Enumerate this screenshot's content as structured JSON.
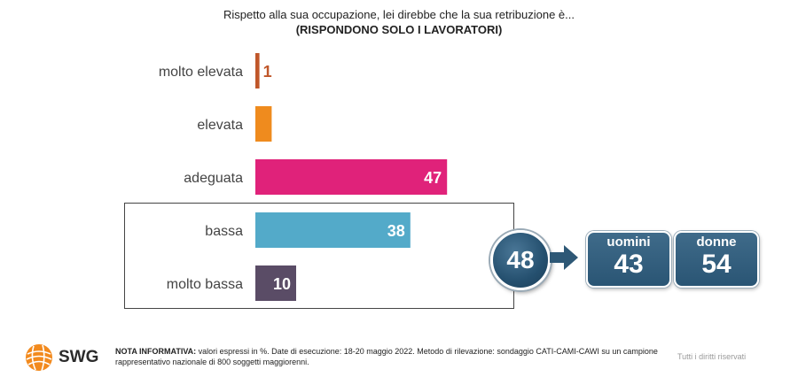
{
  "title": {
    "line1": "Rispetto alla sua occupazione, lei direbbe che la sua retribuzione è...",
    "line2": "(RISPONDONO SOLO I LAVORATORI)"
  },
  "chart_data": {
    "type": "bar",
    "orientation": "horizontal",
    "categories": [
      "molto elevata",
      "elevata",
      "adeguata",
      "bassa",
      "molto bassa"
    ],
    "values": [
      1,
      4,
      47,
      38,
      10
    ],
    "colors": [
      "#c0572a",
      "#ef8b1e",
      "#e0227a",
      "#53aac9",
      "#5a4c66"
    ],
    "value_label_colors": [
      "#c0572a",
      "#ffffff",
      "#ffffff",
      "#ffffff",
      "#ffffff"
    ],
    "unit": "%",
    "xlim": [
      0,
      100
    ]
  },
  "summary": {
    "total_low": "48",
    "uomini_label": "uomini",
    "uomini_value": "43",
    "donne_label": "donne",
    "donne_value": "54",
    "box_color": "#2f5d7c"
  },
  "footer": {
    "logo_text": "SWG",
    "note_bold": "NOTA INFORMATIVA:",
    "note_text": " valori espressi in %. Date di esecuzione: 18-20 maggio 2022. Metodo di rilevazione: sondaggio CATI-CAMI-CAWI su un campione rappresentativo nazionale di 800 soggetti maggiorenni.",
    "rights": "Tutti i diritti riservati"
  }
}
